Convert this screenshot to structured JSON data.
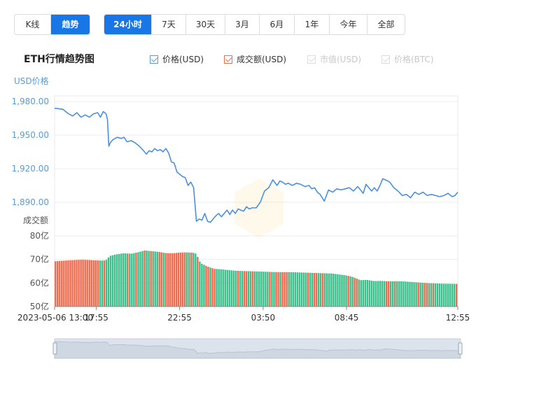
{
  "toolbar": {
    "type_buttons": [
      {
        "label": "K线",
        "active": false
      },
      {
        "label": "趋势",
        "active": true
      }
    ],
    "range_buttons": [
      {
        "label": "24小时",
        "active": true
      },
      {
        "label": "7天",
        "active": false
      },
      {
        "label": "30天",
        "active": false
      },
      {
        "label": "3月",
        "active": false
      },
      {
        "label": "6月",
        "active": false
      },
      {
        "label": "1年",
        "active": false
      },
      {
        "label": "今年",
        "active": false
      },
      {
        "label": "全部",
        "active": false
      }
    ]
  },
  "chart_title": "ETH行情趋势图",
  "legend": [
    {
      "label": "价格(USD)",
      "enabled": true,
      "color": "#5b9bd5"
    },
    {
      "label": "成交额(USD)",
      "enabled": true,
      "color": "#e8734a"
    },
    {
      "label": "市值(USD)",
      "enabled": false,
      "color": "#c8c8c8"
    },
    {
      "label": "价格(BTC)",
      "enabled": false,
      "color": "#c8c8c8"
    }
  ],
  "colors": {
    "accent": "#1976e6",
    "price_line": "#4a90e2",
    "vol_up": "#3dbf8c",
    "vol_down": "#f06b4e",
    "axis_text": "#5b9bd5"
  },
  "chart_data": {
    "type": "line",
    "price_axis": {
      "title": "USD价格",
      "ylim": [
        1860,
        1985
      ],
      "ticks": [
        "1,980.00",
        "1,950.00",
        "1,920.00",
        "1,890.00"
      ],
      "tick_values": [
        1980,
        1950,
        1920,
        1890
      ]
    },
    "volume_axis": {
      "title": "成交额",
      "ylim": [
        50,
        80
      ],
      "ticks": [
        "80亿",
        "70亿",
        "60亿",
        "50亿"
      ],
      "tick_values": [
        80,
        70,
        60,
        50
      ]
    },
    "x_ticks": [
      "2023-05-06 13:00",
      "17:55",
      "22:55",
      "03:50",
      "08:45",
      "12:55"
    ],
    "x_tick_pos": [
      0,
      0.1035,
      0.31,
      0.5172,
      0.7241,
      1.0
    ],
    "series": [
      {
        "name": "价格(USD)",
        "x": [
          0,
          0.0207,
          0.0345,
          0.0448,
          0.0552,
          0.0655,
          0.0759,
          0.0862,
          0.0966,
          0.1069,
          0.1138,
          0.1207,
          0.1276,
          0.131,
          0.1345,
          0.1379,
          0.1448,
          0.1552,
          0.1655,
          0.1724,
          0.1793,
          0.1897,
          0.2,
          0.2103,
          0.2207,
          0.2276,
          0.2345,
          0.2414,
          0.2483,
          0.2552,
          0.2621,
          0.269,
          0.2759,
          0.2828,
          0.2897,
          0.2966,
          0.3034,
          0.3103,
          0.3172,
          0.3241,
          0.331,
          0.3379,
          0.3448,
          0.3517,
          0.3586,
          0.3655,
          0.3724,
          0.3793,
          0.3862,
          0.3931,
          0.4,
          0.4069,
          0.4138,
          0.4207,
          0.4276,
          0.4345,
          0.4414,
          0.4483,
          0.4552,
          0.4621,
          0.469,
          0.4759,
          0.4828,
          0.4897,
          0.5,
          0.5103,
          0.5207,
          0.531,
          0.5414,
          0.5517,
          0.5586,
          0.5655,
          0.5724,
          0.5793,
          0.5897,
          0.6,
          0.6103,
          0.6207,
          0.631,
          0.6379,
          0.6448,
          0.6517,
          0.6586,
          0.669,
          0.6793,
          0.6897,
          0.7,
          0.7103,
          0.7207,
          0.731,
          0.7414,
          0.7517,
          0.7586,
          0.7655,
          0.7724,
          0.7793,
          0.7862,
          0.7931,
          0.8,
          0.8069,
          0.8138,
          0.8207,
          0.831,
          0.8414,
          0.8517,
          0.8621,
          0.8724,
          0.8828,
          0.8931,
          0.9034,
          0.9138,
          0.9241,
          0.9345,
          0.9448,
          0.9552,
          0.9655,
          0.9759,
          0.9862,
          0.9931,
          1.0
        ],
        "values": [
          1974,
          1973,
          1969,
          1967,
          1970,
          1966,
          1968,
          1966,
          1969,
          1970,
          1966,
          1971,
          1969,
          1964,
          1940,
          1943,
          1946,
          1948,
          1947,
          1948,
          1944,
          1945,
          1943,
          1940,
          1936,
          1933,
          1936,
          1935,
          1938,
          1936,
          1937,
          1935,
          1938,
          1934,
          1926,
          1925,
          1917,
          1915,
          1913,
          1912,
          1905,
          1908,
          1903,
          1873,
          1875,
          1874,
          1880,
          1873,
          1872,
          1875,
          1878,
          1880,
          1877,
          1880,
          1883,
          1879,
          1883,
          1880,
          1884,
          1883,
          1882,
          1886,
          1884,
          1885,
          1885,
          1890,
          1900,
          1903,
          1910,
          1905,
          1909,
          1908,
          1906,
          1907,
          1905,
          1907,
          1906,
          1904,
          1905,
          1902,
          1903,
          1899,
          1897,
          1891,
          1901,
          1899,
          1902,
          1901,
          1902,
          1903,
          1900,
          1904,
          1901,
          1898,
          1906,
          1903,
          1900,
          1903,
          1900,
          1905,
          1911,
          1910,
          1908,
          1903,
          1900,
          1896,
          1897,
          1894,
          1899,
          1897,
          1899,
          1896,
          1897,
          1896,
          1895,
          1896,
          1898,
          1895,
          1896,
          1899
        ]
      },
      {
        "name": "成交额(USD)",
        "x": [
          0,
          0.0345,
          0.069,
          0.1035,
          0.1207,
          0.1276,
          0.1379,
          0.1552,
          0.1724,
          0.1897,
          0.2069,
          0.2241,
          0.2414,
          0.2586,
          0.2759,
          0.2931,
          0.3103,
          0.3276,
          0.3448,
          0.3517,
          0.3621,
          0.3793,
          0.3966,
          0.4138,
          0.4483,
          0.4828,
          0.5172,
          0.5517,
          0.5862,
          0.6207,
          0.6552,
          0.6897,
          0.7241,
          0.7414,
          0.7586,
          0.7759,
          0.7931,
          0.8103,
          0.8276,
          0.8621,
          0.8966,
          0.931,
          0.9655,
          1.0
        ],
        "values": [
          69.2,
          69.6,
          69.9,
          69.6,
          69.5,
          69.6,
          71.5,
          72.2,
          72.6,
          72.4,
          73.0,
          73.8,
          73.5,
          73.2,
          72.7,
          72.6,
          72.9,
          73.0,
          72.8,
          72.4,
          68.5,
          67.0,
          66.0,
          65.8,
          65.2,
          65.0,
          64.8,
          64.6,
          64.6,
          64.4,
          64.2,
          64.0,
          63.2,
          62.5,
          61.2,
          61.3,
          60.8,
          60.9,
          60.7,
          60.7,
          60.3,
          59.9,
          59.7,
          59.6
        ]
      }
    ],
    "xlabel": "",
    "ylabel": "USD价格",
    "grid": true,
    "legend_position": "top"
  }
}
